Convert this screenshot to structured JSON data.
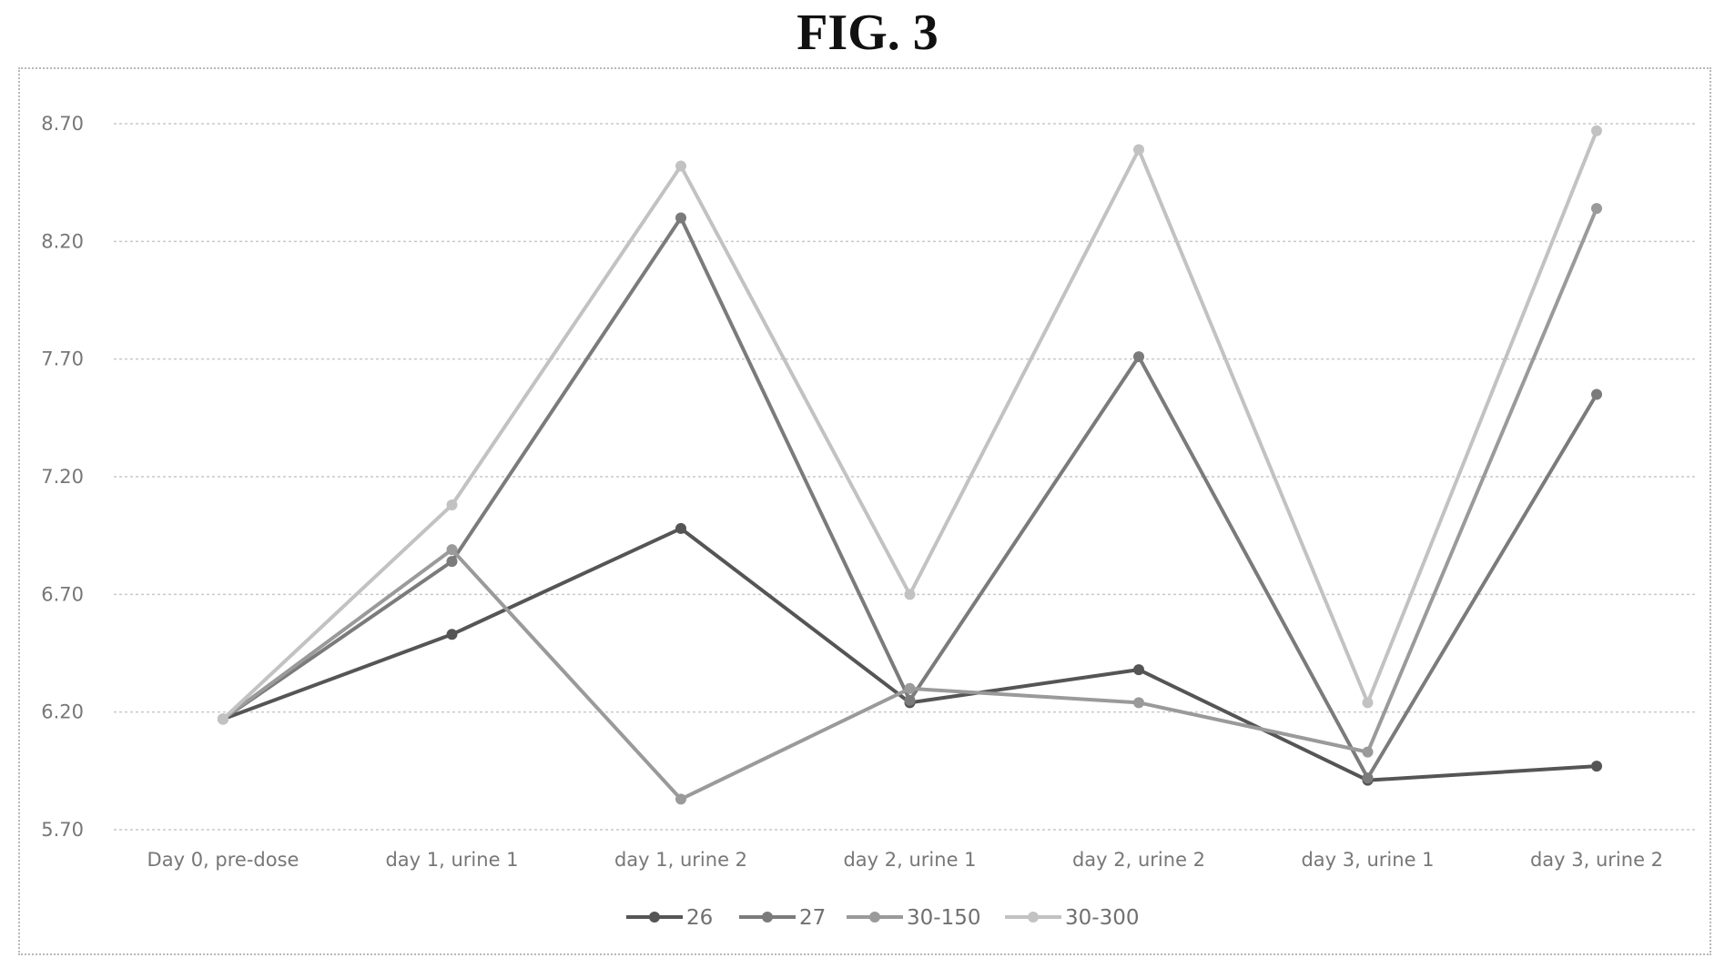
{
  "figure": {
    "label": "FIG. 3"
  },
  "chart_data": {
    "type": "line",
    "title": "",
    "xlabel": "",
    "ylabel": "",
    "categories": [
      "Day 0, pre-dose",
      "day 1, urine 1",
      "day 1, urine 2",
      "day 2, urine 1",
      "day 2, urine 2",
      "day 3, urine 1",
      "day 3, urine 2"
    ],
    "ylim": [
      5.7,
      8.7
    ],
    "yticks": [
      "5.70",
      "6.20",
      "6.70",
      "7.20",
      "7.70",
      "8.20",
      "8.70"
    ],
    "grid": true,
    "legend_position": "bottom",
    "series": [
      {
        "name": "26",
        "color": "#555555",
        "values": [
          6.17,
          6.53,
          6.98,
          6.24,
          6.38,
          5.91,
          5.97
        ]
      },
      {
        "name": "27",
        "color": "#7b7b7b",
        "values": [
          6.17,
          6.84,
          8.3,
          6.25,
          7.71,
          5.92,
          7.55
        ]
      },
      {
        "name": "30-150",
        "color": "#9a9a9a",
        "values": [
          6.17,
          6.89,
          5.83,
          6.3,
          6.24,
          6.03,
          8.34
        ]
      },
      {
        "name": "30-300",
        "color": "#c2c2c2",
        "values": [
          6.17,
          7.08,
          8.52,
          6.7,
          8.59,
          6.24,
          8.67
        ]
      }
    ]
  }
}
